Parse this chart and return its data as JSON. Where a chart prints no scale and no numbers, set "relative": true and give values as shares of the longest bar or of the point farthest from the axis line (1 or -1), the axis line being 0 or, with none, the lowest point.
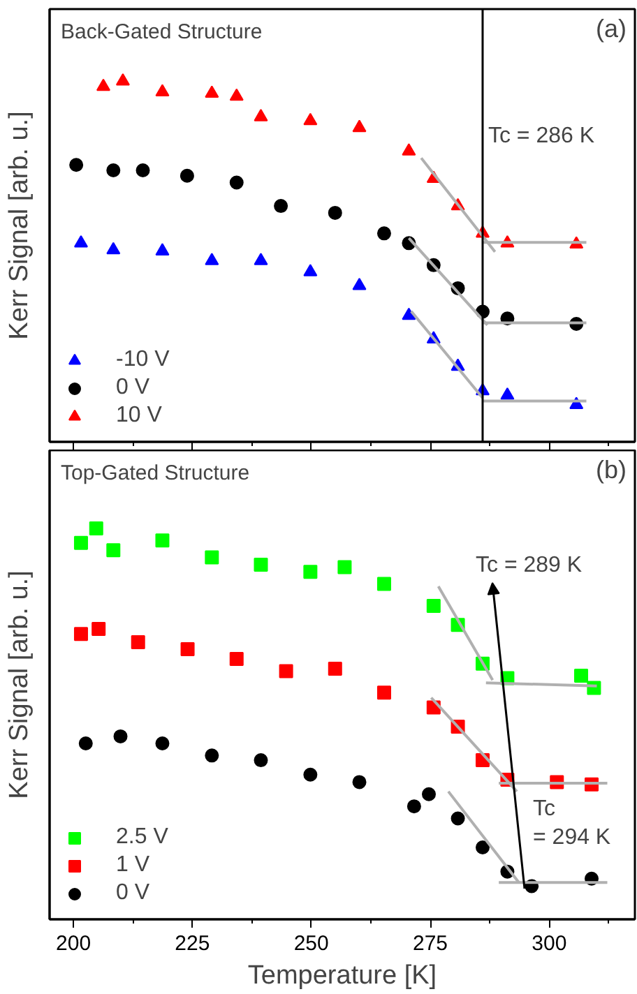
{
  "chart_data": [
    {
      "type": "scatter",
      "title": "Back-Gated Structure",
      "ylabel": "Kerr Signal [arb. u.]",
      "relative": true,
      "xlim": [
        195,
        318
      ],
      "xticks": [
        200,
        225,
        250,
        275,
        300
      ],
      "tick_labels": false,
      "legend": "bottom left",
      "grid": false,
      "annotations": [
        "(a)"
      ],
      "ref_lines": [
        {
          "axis": "x",
          "value": 286,
          "label": "Tc = 286 K",
          "color": "#000000"
        }
      ],
      "series": [
        {
          "name": "-10 V",
          "color": "#0000ff",
          "marker": "triangle",
          "x": [
            201.6,
            208.4,
            218.7,
            229.1,
            239.4,
            249.8,
            260.1,
            270.5,
            275.7,
            280.8,
            286,
            291.2,
            305.7
          ],
          "values": [
            0.551,
            0.532,
            0.529,
            0.502,
            0.502,
            0.471,
            0.433,
            0.35,
            0.285,
            0.209,
            0.141,
            0.129,
            0.103
          ]
        },
        {
          "name": "0 V",
          "color": "#000000",
          "marker": "circle",
          "x": [
            200.6,
            208.4,
            214.6,
            223.9,
            234.3,
            243.6,
            255,
            265.3,
            270.5,
            275.7,
            280.8,
            286,
            291.2,
            305.7
          ],
          "values": [
            0.768,
            0.753,
            0.753,
            0.738,
            0.719,
            0.654,
            0.635,
            0.578,
            0.551,
            0.49,
            0.426,
            0.361,
            0.342,
            0.327
          ]
        },
        {
          "name": "10 V",
          "color": "#ff0000",
          "marker": "triangle",
          "x": [
            206.3,
            210.4,
            218.7,
            229.1,
            234.3,
            239.4,
            249.8,
            260.1,
            270.5,
            275.7,
            280.8,
            286,
            291.2,
            305.7
          ],
          "values": [
            0.985,
            1.0,
            0.97,
            0.966,
            0.958,
            0.901,
            0.89,
            0.871,
            0.806,
            0.73,
            0.654,
            0.578,
            0.551,
            0.548
          ]
        },
        {
          "type": "line",
          "color": "#b0b0b0",
          "x": [
            273.1,
            288.6
          ],
          "values": [
            0.787,
            0.527
          ]
        },
        {
          "type": "line",
          "color": "#b0b0b0",
          "x": [
            286,
            307.8
          ],
          "values": [
            0.553,
            0.553
          ]
        },
        {
          "type": "line",
          "color": "#b0b0b0",
          "x": [
            270.5,
            287
          ],
          "values": [
            0.565,
            0.324
          ]
        },
        {
          "type": "line",
          "color": "#b0b0b0",
          "x": [
            286,
            307.8
          ],
          "values": [
            0.33,
            0.33
          ]
        },
        {
          "type": "line",
          "color": "#b0b0b0",
          "x": [
            271,
            286
          ],
          "values": [
            0.362,
            0.122
          ]
        },
        {
          "type": "line",
          "color": "#b0b0b0",
          "x": [
            286,
            307.8
          ],
          "values": [
            0.113,
            0.113
          ]
        }
      ]
    },
    {
      "type": "scatter",
      "title": "Top-Gated Structure",
      "xlabel": "Temperature [K]",
      "ylabel": "Kerr Signal [arb. u.]",
      "relative": true,
      "xlim": [
        195,
        318
      ],
      "xticks": [
        200,
        225,
        250,
        275,
        300
      ],
      "tick_labels": "x",
      "legend": "bottom left",
      "grid": false,
      "annotations": [
        "(b)",
        "Tc = 289 K",
        "Tc\n= 294 K"
      ],
      "series": [
        {
          "name": "2.5 V",
          "color": "#00ff00",
          "marker": "square",
          "x": [
            201.6,
            204.8,
            208.4,
            218.7,
            229.1,
            239.4,
            249.8,
            257,
            265.3,
            275.7,
            280.8,
            286,
            291.2,
            306.7,
            309.4
          ],
          "values": [
            0.963,
            1.0,
            0.944,
            0.969,
            0.926,
            0.907,
            0.889,
            0.901,
            0.858,
            0.802,
            0.753,
            0.654,
            0.617,
            0.623,
            0.592
          ]
        },
        {
          "name": "1 V",
          "color": "#ff0000",
          "marker": "square",
          "x": [
            201.6,
            205.3,
            213.6,
            224,
            234.3,
            244.7,
            255,
            265.3,
            275.7,
            280.8,
            286,
            291.2,
            301.6,
            308.9
          ],
          "values": [
            0.73,
            0.743,
            0.709,
            0.691,
            0.666,
            0.635,
            0.641,
            0.58,
            0.542,
            0.493,
            0.407,
            0.357,
            0.351,
            0.345
          ]
        },
        {
          "name": "0 V",
          "color": "#000000",
          "marker": "circle",
          "x": [
            202.6,
            209.9,
            218.7,
            229.1,
            239.4,
            249.8,
            260.1,
            271.6,
            274.7,
            280.8,
            286,
            291.2,
            296.3,
            308.9
          ],
          "values": [
            0.45,
            0.468,
            0.45,
            0.419,
            0.407,
            0.37,
            0.351,
            0.289,
            0.32,
            0.258,
            0.184,
            0.122,
            0.085,
            0.104
          ]
        },
        {
          "type": "line",
          "color": "#b0b0b0",
          "x": [
            276.7,
            288.1
          ],
          "values": [
            0.852,
            0.612
          ]
        },
        {
          "type": "line",
          "color": "#b0b0b0",
          "x": [
            286.7,
            310
          ],
          "values": [
            0.605,
            0.597
          ]
        },
        {
          "type": "line",
          "color": "#b0b0b0",
          "x": [
            275.2,
            293.2
          ],
          "values": [
            0.567,
            0.327
          ]
        },
        {
          "type": "line",
          "color": "#b0b0b0",
          "x": [
            289.4,
            312.2
          ],
          "values": [
            0.348,
            0.348
          ]
        },
        {
          "type": "line",
          "color": "#b0b0b0",
          "x": [
            278.8,
            293.7
          ],
          "values": [
            0.327,
            0.093
          ]
        },
        {
          "type": "line",
          "color": "#b0b0b0",
          "x": [
            289.4,
            312.2
          ],
          "values": [
            0.094,
            0.094
          ]
        }
      ]
    }
  ]
}
